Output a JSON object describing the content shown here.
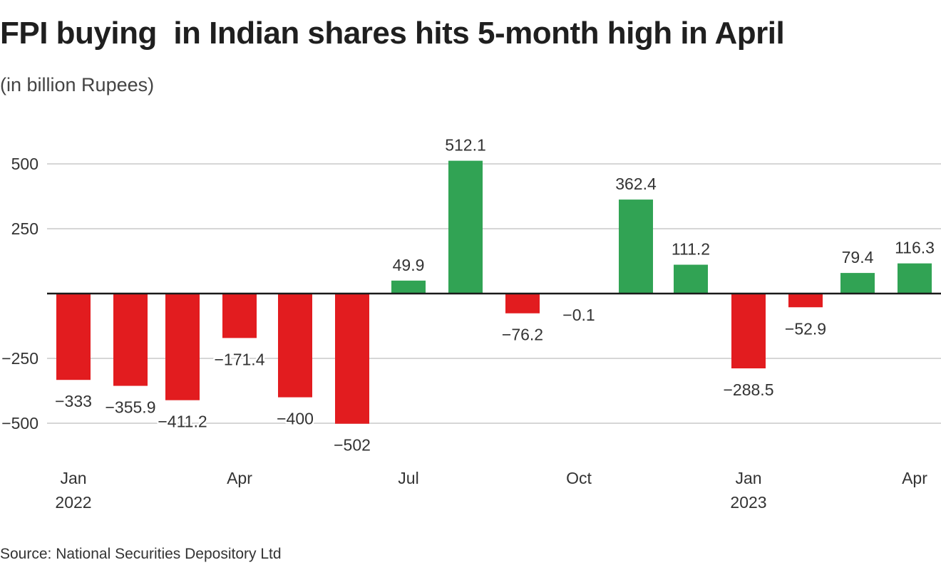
{
  "title": "FPI buying  in Indian shares hits 5-month high in April",
  "subtitle": "(in billion Rupees)",
  "source": "Source: National Securities Depository Ltd",
  "colors": {
    "positive": "#31a354",
    "negative": "#e21c1f",
    "grid": "#c8c8c8",
    "zero_line": "#1a1a1a"
  },
  "chart_data": {
    "type": "bar",
    "title": "FPI buying  in Indian shares hits 5-month high in April",
    "subtitle": "(in billion Rupees)",
    "xlabel": "",
    "ylabel": "",
    "ylim": [
      -600,
      600
    ],
    "yticks": [
      500,
      250,
      -250,
      -500
    ],
    "ytick_labels": [
      "500",
      "250",
      "−250",
      "−500"
    ],
    "grid": true,
    "categories": [
      "Jan 2022",
      "Feb 2022",
      "Mar 2022",
      "Apr 2022",
      "May 2022",
      "Jun 2022",
      "Jul 2022",
      "Aug 2022",
      "Sep 2022",
      "Oct 2022",
      "Nov 2022",
      "Dec 2022",
      "Jan 2023",
      "Feb 2023",
      "Mar 2023",
      "Apr 2023"
    ],
    "values": [
      -333,
      -355.9,
      -411.2,
      -171.4,
      -400,
      -502,
      49.9,
      512.1,
      -76.2,
      -0.1,
      362.4,
      111.2,
      -288.5,
      -52.9,
      79.4,
      116.3
    ],
    "data_labels": [
      "−333",
      "−355.9",
      "−411.2",
      "−171.4",
      "−400",
      "−502",
      "49.9",
      "512.1",
      "−76.2",
      "−0.1",
      "362.4",
      "111.2",
      "−288.5",
      "−52.9",
      "79.4",
      "116.3"
    ],
    "xtick_labels": [
      {
        "index": 0,
        "month": "Jan",
        "year": "2022"
      },
      {
        "index": 3,
        "month": "Apr",
        "year": ""
      },
      {
        "index": 6,
        "month": "Jul",
        "year": ""
      },
      {
        "index": 9,
        "month": "Oct",
        "year": ""
      },
      {
        "index": 12,
        "month": "Jan",
        "year": "2023"
      },
      {
        "index": 15,
        "month": "Apr",
        "year": ""
      }
    ],
    "source": "Source: National Securities Depository Ltd"
  }
}
